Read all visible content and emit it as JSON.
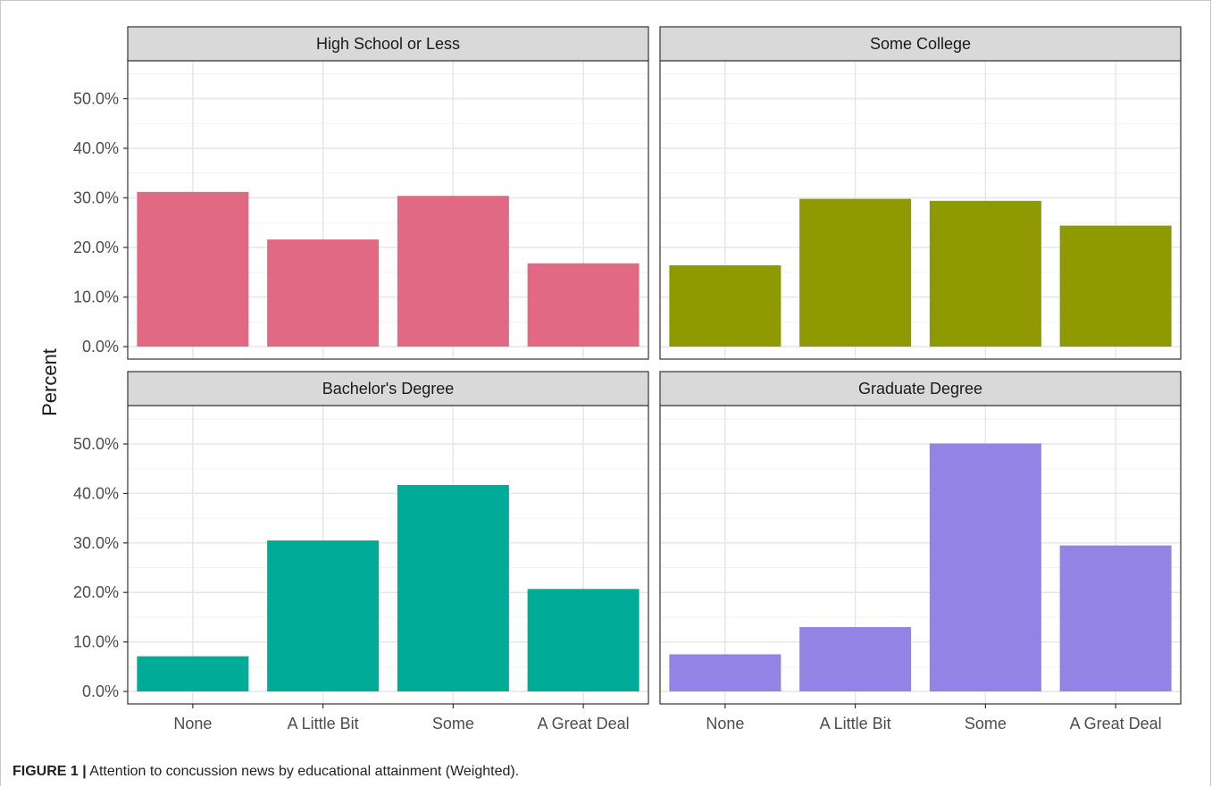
{
  "chart_data": {
    "type": "bar",
    "ylabel": "Percent",
    "ylim": [
      0,
      0.55
    ],
    "y_ticks": [
      0,
      0.1,
      0.2,
      0.3,
      0.4,
      0.5
    ],
    "y_tick_labels": [
      "0.0%",
      "10.0%",
      "20.0%",
      "30.0%",
      "40.0%",
      "50.0%"
    ],
    "categories": [
      "None",
      "A Little Bit",
      "Some",
      "A Great Deal"
    ],
    "grid": true,
    "panels": [
      {
        "strip": "High School or Less",
        "color": "#E26984",
        "values": [
          0.312,
          0.216,
          0.304,
          0.168
        ]
      },
      {
        "strip": "Some College",
        "color": "#8F9A00",
        "values": [
          0.164,
          0.298,
          0.294,
          0.244
        ]
      },
      {
        "strip": "Bachelor's Degree",
        "color": "#00AC98",
        "values": [
          0.071,
          0.305,
          0.417,
          0.207
        ]
      },
      {
        "strip": "Graduate Degree",
        "color": "#9283E5",
        "values": [
          0.075,
          0.13,
          0.501,
          0.295
        ]
      }
    ]
  },
  "caption": {
    "label": "FIGURE 1 |",
    "text": " Attention to concussion news by educational attainment (Weighted)."
  }
}
